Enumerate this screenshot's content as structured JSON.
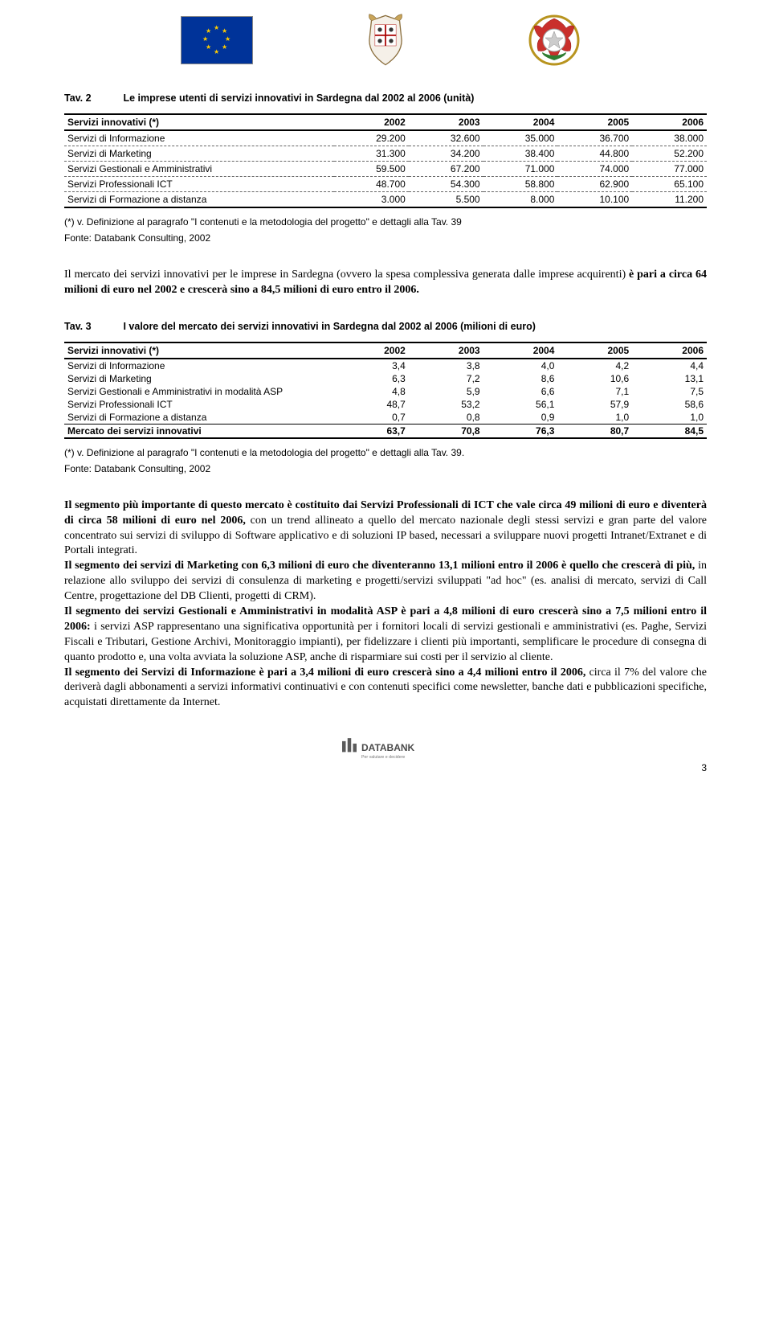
{
  "header": {
    "logos": [
      "eu-flag",
      "sardegna-crest",
      "italy-emblem"
    ]
  },
  "table2": {
    "tav": "Tav. 2",
    "title": "Le imprese utenti di servizi innovativi in Sardegna dal 2002 al 2006 (unità)",
    "header_label": "Servizi innovativi (*)",
    "years": [
      "2002",
      "2003",
      "2004",
      "2005",
      "2006"
    ],
    "rows": [
      {
        "label": "Servizi di Informazione",
        "v": [
          "29.200",
          "32.600",
          "35.000",
          "36.700",
          "38.000"
        ]
      },
      {
        "label": "Servizi di Marketing",
        "v": [
          "31.300",
          "34.200",
          "38.400",
          "44.800",
          "52.200"
        ]
      },
      {
        "label": "Servizi Gestionali e Amministrativi",
        "v": [
          "59.500",
          "67.200",
          "71.000",
          "74.000",
          "77.000"
        ]
      },
      {
        "label": "Servizi Professionali ICT",
        "v": [
          "48.700",
          "54.300",
          "58.800",
          "62.900",
          "65.100"
        ]
      },
      {
        "label": "Servizi di Formazione a distanza",
        "v": [
          "3.000",
          "5.500",
          "8.000",
          "10.100",
          "11.200"
        ]
      }
    ],
    "footnote": "(*) v. Definizione al paragrafo \"I contenuti e la metodologia del progetto\" e dettagli  alla Tav. 39",
    "source": "Fonte: Databank Consulting, 2002"
  },
  "para1": {
    "pre": "Il mercato dei servizi innovativi per le imprese in Sardegna (ovvero la spesa complessiva generata dalle imprese acquirenti) ",
    "bold": "è pari a circa 64 milioni di euro nel 2002 e crescerà sino a 84,5 milioni di euro entro il 2006.",
    "post": ""
  },
  "table3": {
    "tav": "Tav. 3",
    "title": "I valore del mercato dei servizi innovativi in Sardegna dal 2002 al 2006 (milioni di euro)",
    "header_label": "Servizi innovativi (*)",
    "years": [
      "2002",
      "2003",
      "2004",
      "2005",
      "2006"
    ],
    "rows": [
      {
        "label": "Servizi di Informazione",
        "v": [
          "3,4",
          "3,8",
          "4,0",
          "4,2",
          "4,4"
        ]
      },
      {
        "label": "Servizi di Marketing",
        "v": [
          "6,3",
          "7,2",
          "8,6",
          "10,6",
          "13,1"
        ]
      },
      {
        "label": "Servizi Gestionali e Amministrativi in modalità ASP",
        "v": [
          "4,8",
          "5,9",
          "6,6",
          "7,1",
          "7,5"
        ]
      },
      {
        "label": "Servizi Professionali ICT",
        "v": [
          "48,7",
          "53,2",
          "56,1",
          "57,9",
          "58,6"
        ]
      },
      {
        "label": "Servizi di Formazione a distanza",
        "v": [
          "0,7",
          "0,8",
          "0,9",
          "1,0",
          "1,0"
        ]
      }
    ],
    "total": {
      "label": "Mercato dei servizi innovativi",
      "v": [
        "63,7",
        "70,8",
        "76,3",
        "80,7",
        "84,5"
      ]
    },
    "footnote": "(*) v. Definizione al paragrafo \"I contenuti e la metodologia del progetto\" e dettagli  alla Tav. 39.",
    "source": "Fonte: Databank Consulting, 2002"
  },
  "para2": [
    {
      "bold": "Il segmento più importante di questo mercato è costituito dai  Servizi Professionali di ICT che vale circa 49 milioni di euro e diventerà di circa 58 milioni di euro nel 2006,",
      "post": " con un trend allineato a quello del mercato nazionale degli stessi servizi e gran parte del valore concentrato sui servizi di sviluppo di Software applicativo e di soluzioni IP based, necessari a sviluppare nuovi progetti Intranet/Extranet e di Portali integrati."
    },
    {
      "bold": "Il segmento dei servizi di Marketing con 6,3 milioni di euro che diventeranno 13,1 milioni entro il 2006 è quello che crescerà di più,",
      "post": " in relazione allo sviluppo dei servizi di consulenza di marketing e progetti/servizi sviluppati \"ad hoc\" (es.  analisi di mercato, servizi di Call Centre, progettazione del DB Clienti, progetti di CRM)."
    },
    {
      "bold": "Il segmento dei servizi Gestionali e Amministrativi in modalità ASP è pari a 4,8 milioni di euro crescerà sino a 7,5 milioni entro il 2006:",
      "post": " i servizi ASP rappresentano una significativa opportunità per i fornitori locali di servizi gestionali e amministrativi (es. Paghe, Servizi Fiscali e Tributari, Gestione Archivi, Monitoraggio impianti), per fidelizzare i clienti più importanti, semplificare le procedure di consegna di quanto prodotto e, una volta avviata la soluzione ASP, anche di risparmiare sui costi per il servizio al cliente."
    },
    {
      "bold": "Il segmento dei Servizi di Informazione è pari a 3,4 milioni di euro crescerà sino a 4,4 milioni entro il 2006,",
      "post": " circa il 7% del valore che deriverà dagli abbonamenti a servizi informativi continuativi e con contenuti specifici come newsletter, banche dati e pubblicazioni specifiche, acquistati direttamente da Internet."
    }
  ],
  "footer": {
    "brand": "DATABANK",
    "tagline": "Per valutare e decidere",
    "page": "3"
  }
}
